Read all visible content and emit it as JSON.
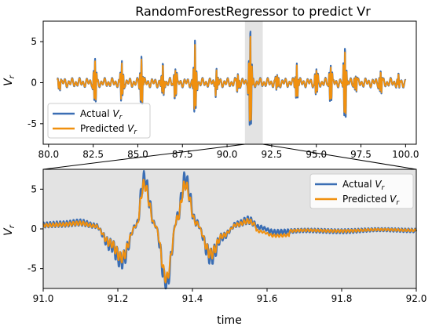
{
  "chart_data": [
    {
      "type": "line",
      "title": "RandomForestRegressor to predict Vr",
      "ylabel": "V_r",
      "xlabel": "",
      "xlim": [
        79.7,
        100.6
      ],
      "ylim": [
        -7.5,
        7.5
      ],
      "xticks": [
        "80.0",
        "82.5",
        "85.0",
        "87.5",
        "90.0",
        "92.5",
        "95.0",
        "97.5",
        "100.0"
      ],
      "yticks": [
        "5",
        "0",
        "-5"
      ],
      "highlight_span": [
        91.0,
        92.0
      ],
      "legend_location": "lower-left",
      "series": [
        {
          "name": "Actual V_r",
          "color": "#3b6eb4"
        },
        {
          "name": "Predicted V_r",
          "color": "#f0900f"
        }
      ],
      "bursts": [
        {
          "t": 80.6,
          "amp": 0.7
        },
        {
          "t": 82.6,
          "amp": 3.0
        },
        {
          "t": 84.1,
          "amp": 2.6
        },
        {
          "t": 85.2,
          "amp": 3.2
        },
        {
          "t": 86.4,
          "amp": 2.0
        },
        {
          "t": 87.1,
          "amp": 2.1
        },
        {
          "t": 88.2,
          "amp": 4.7
        },
        {
          "t": 89.4,
          "amp": 1.6
        },
        {
          "t": 90.6,
          "amp": 1.1
        },
        {
          "t": 91.3,
          "amp": 6.6
        },
        {
          "t": 92.8,
          "amp": 1.0
        },
        {
          "t": 93.9,
          "amp": 2.3
        },
        {
          "t": 95.0,
          "amp": 1.8
        },
        {
          "t": 95.8,
          "amp": 2.6
        },
        {
          "t": 96.6,
          "amp": 4.9
        },
        {
          "t": 97.2,
          "amp": 1.1
        },
        {
          "t": 98.6,
          "amp": 1.5
        },
        {
          "t": 99.6,
          "amp": 0.8
        }
      ]
    },
    {
      "type": "line",
      "title": "",
      "xlabel": "time",
      "ylabel": "V_r",
      "xlim": [
        91.0,
        92.0
      ],
      "ylim": [
        -7.5,
        7.5
      ],
      "xticks": [
        "91.0",
        "91.2",
        "91.4",
        "91.6",
        "91.8",
        "92.0"
      ],
      "yticks": [
        "5",
        "0",
        "-5"
      ],
      "legend_location": "upper-right",
      "series": [
        {
          "name": "Actual V_r",
          "color": "#3b6eb4"
        },
        {
          "name": "Predicted V_r",
          "color": "#f0900f"
        }
      ],
      "envelope_points": [
        [
          91.0,
          0.5
        ],
        [
          91.05,
          0.6
        ],
        [
          91.1,
          0.8
        ],
        [
          91.14,
          0.4
        ],
        [
          91.18,
          -2.0
        ],
        [
          91.21,
          -4.0
        ],
        [
          91.25,
          0.5
        ],
        [
          91.27,
          6.2
        ],
        [
          91.3,
          0.5
        ],
        [
          91.33,
          -6.9
        ],
        [
          91.36,
          1.5
        ],
        [
          91.38,
          6.2
        ],
        [
          91.41,
          0.8
        ],
        [
          91.45,
          -3.5
        ],
        [
          91.48,
          -1.0
        ],
        [
          91.52,
          0.6
        ],
        [
          91.55,
          1.1
        ],
        [
          91.58,
          0.2
        ],
        [
          91.62,
          -0.4
        ],
        [
          91.7,
          -0.2
        ],
        [
          91.8,
          -0.3
        ],
        [
          91.9,
          -0.1
        ],
        [
          92.0,
          -0.2
        ]
      ]
    }
  ]
}
